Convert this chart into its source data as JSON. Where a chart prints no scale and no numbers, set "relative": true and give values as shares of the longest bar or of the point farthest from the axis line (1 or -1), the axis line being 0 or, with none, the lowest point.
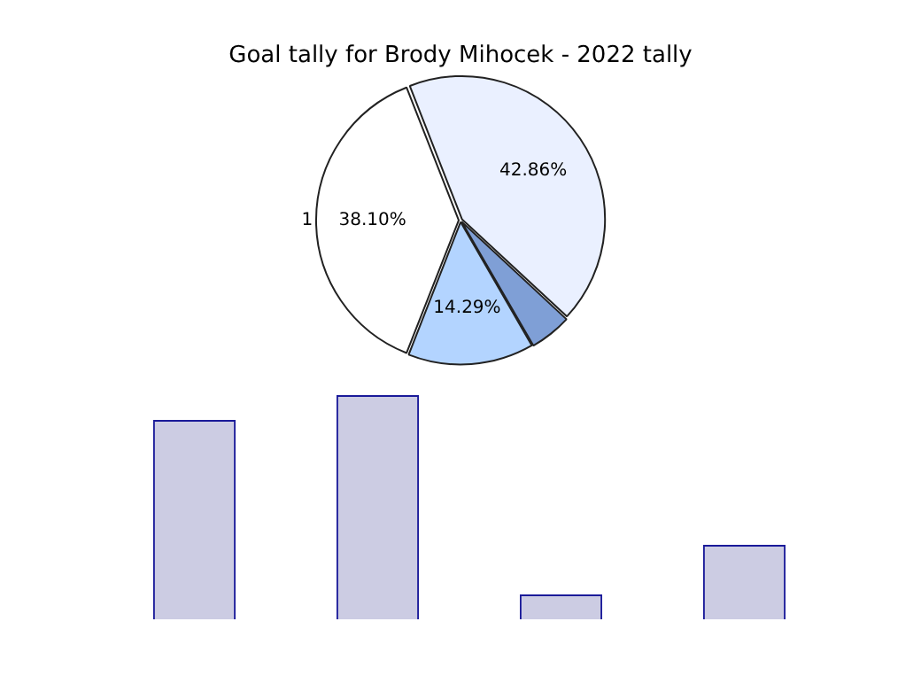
{
  "chart_data": [
    {
      "type": "pie",
      "title": "Goal tally for Brody Mihocek - 2022 tally",
      "categories": [
        "1",
        null,
        null,
        null
      ],
      "values": [
        38.1,
        42.86,
        4.76,
        14.29
      ],
      "colors": [
        "#ffffff",
        "#eaf0ff",
        "#7f9fd6",
        "#b3d4ff"
      ],
      "value_labels": [
        "38.10%",
        "42.86%",
        null,
        "14.29%"
      ],
      "legend": false
    },
    {
      "type": "bar",
      "relative": true,
      "categories": [
        null,
        null,
        null,
        null
      ],
      "values": [
        0.889,
        1,
        0.111,
        0.333
      ],
      "color": "#cccce3",
      "legend": false,
      "grid": false
    }
  ]
}
